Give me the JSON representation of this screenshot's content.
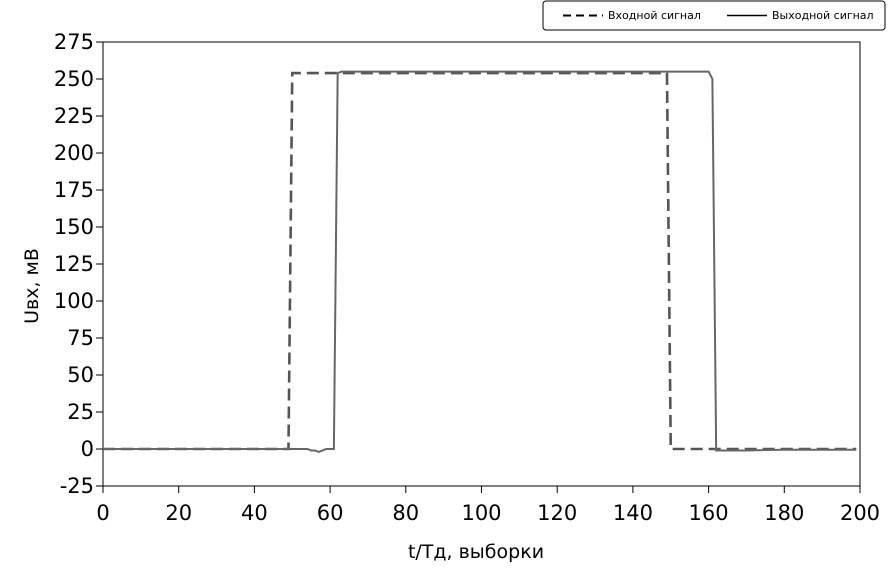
{
  "chart_data": {
    "type": "line",
    "title": "",
    "xlabel": "t/Tд, выборки",
    "ylabel": "Uвх, мВ",
    "xlim": [
      0,
      200
    ],
    "ylim": [
      -25,
      275
    ],
    "xticks": [
      0,
      20,
      40,
      60,
      80,
      100,
      120,
      140,
      160,
      180,
      200
    ],
    "yticks": [
      -25,
      0,
      25,
      50,
      75,
      100,
      125,
      150,
      175,
      200,
      225,
      250,
      275
    ],
    "grid": false,
    "legend_position": "top-right",
    "series": [
      {
        "name": "Входной сигнал",
        "style": "dashed",
        "color": "#555555",
        "x": [
          0,
          49,
          50,
          149,
          150,
          199
        ],
        "y": [
          0,
          0,
          254,
          254,
          0,
          0
        ]
      },
      {
        "name": "Выходной сигнал",
        "style": "solid",
        "color": "#666666",
        "x": [
          0,
          54,
          55,
          56,
          57,
          58,
          59,
          60,
          61,
          62,
          63,
          100,
          160,
          161,
          162,
          163,
          170,
          180,
          190,
          199
        ],
        "y": [
          0,
          0,
          -1,
          -1,
          -2,
          -1,
          0,
          0,
          0,
          254,
          255,
          255,
          255,
          250,
          -1,
          -1,
          -1,
          -0.5,
          -0.5,
          -0.5
        ]
      }
    ]
  }
}
